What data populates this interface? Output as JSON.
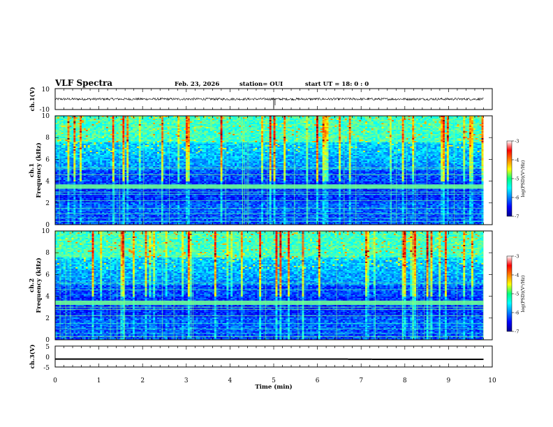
{
  "header": {
    "title": "VLF Spectra",
    "date": "Feb. 23, 2026",
    "station": "station= OUI",
    "start_ut": "start  UT =   18: 0  : 0"
  },
  "chart_data": [
    {
      "type": "line",
      "name": "ch1-waveform",
      "ylabel": "ch.1(V)",
      "ylim": [
        -10,
        10
      ],
      "yticks": [
        "10",
        "-10"
      ],
      "baseline_value": 0,
      "spike_time_min": 5.0
    },
    {
      "type": "heatmap",
      "name": "ch1-spectrogram",
      "ylabel": "ch.1",
      "ylabel2": "Frequency (kHz)",
      "ylim": [
        0,
        10
      ],
      "yticks": [
        "0",
        "2",
        "4",
        "6",
        "8",
        "10"
      ],
      "colorbar": {
        "label": "log(PSD)(V²/Hz)",
        "ticks": [
          "-3",
          "-4",
          "-5",
          "-6",
          "-7"
        ],
        "range": [
          -7,
          -3
        ]
      },
      "strong_band_khz": 3.5
    },
    {
      "type": "heatmap",
      "name": "ch2-spectrogram",
      "ylabel": "ch.2",
      "ylabel2": "Frequency (kHz)",
      "ylim": [
        0,
        10
      ],
      "yticks": [
        "0",
        "2",
        "4",
        "6",
        "8",
        "10"
      ],
      "colorbar": {
        "label": "log(PSD)(V²/Hz)",
        "ticks": [
          "-3",
          "-4",
          "-5",
          "-6",
          "-7"
        ],
        "range": [
          -7,
          -3
        ]
      },
      "strong_band_khz": 3.4
    },
    {
      "type": "line",
      "name": "ch3-trace",
      "ylabel": "ch.3(V)",
      "ylim": [
        -5,
        5
      ],
      "yticks": [
        "5",
        "0",
        "-5"
      ],
      "segments": [
        {
          "t_start": 0,
          "t_end": 6.7,
          "value": -1.2
        },
        {
          "t_start": 6.7,
          "t_end": 7.25,
          "value": -1.3
        },
        {
          "t_start": 7.25,
          "t_end": 9.8,
          "value": -1.35
        }
      ]
    }
  ],
  "xaxis": {
    "label": "Time (min)",
    "xlim": [
      0,
      10
    ],
    "ticks": [
      "0",
      "1",
      "2",
      "3",
      "4",
      "5",
      "6",
      "7",
      "8",
      "9",
      "10"
    ],
    "data_end_min": 9.8
  }
}
